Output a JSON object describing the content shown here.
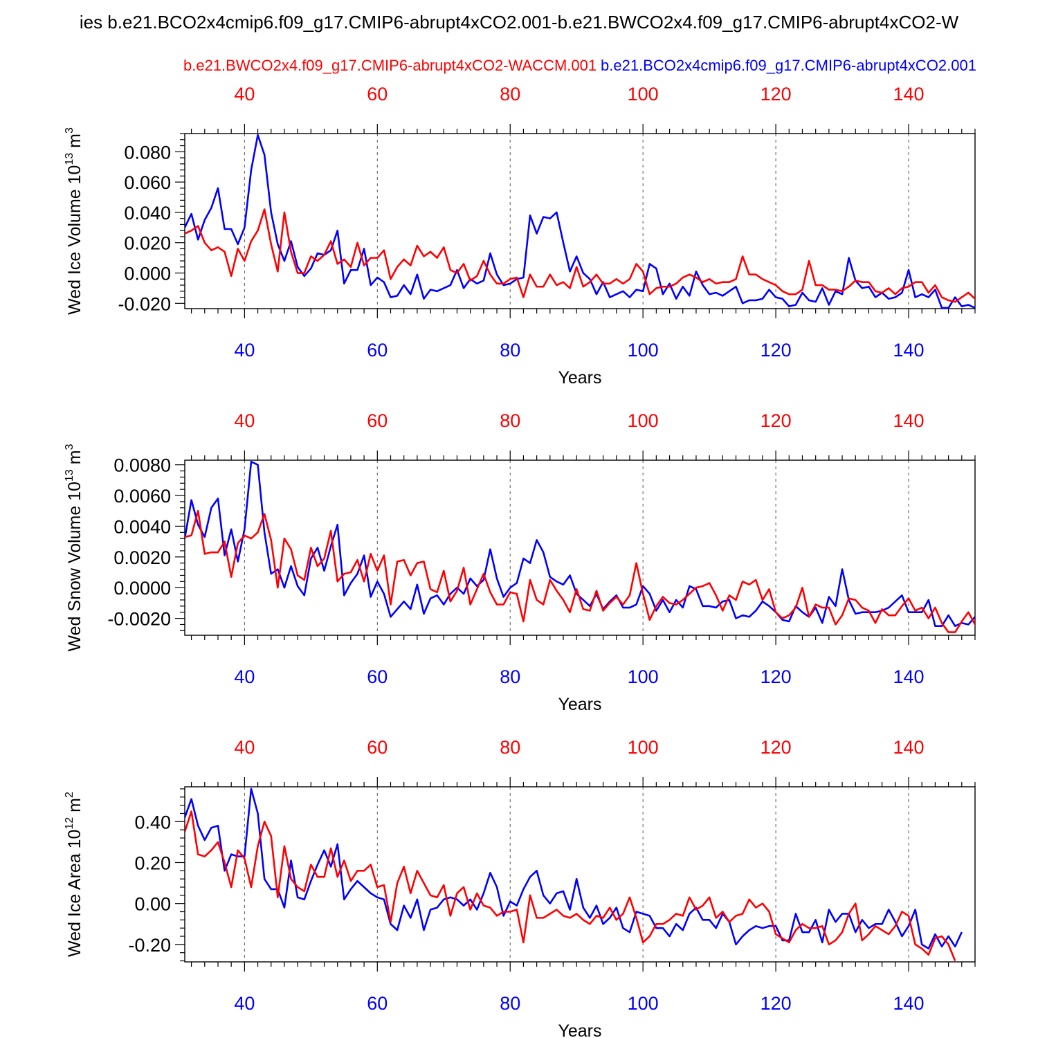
{
  "figure": {
    "main_title": "ies b.e21.BCO2x4cmip6.f09_g17.CMIP6-abrupt4xCO2.001-b.e21.BWCO2x4.f09_g17.CMIP6-abrupt4xCO2-W",
    "red_label": "b.e21.BWCO2x4.f09_g17.CMIP6-abrupt4xCO2-WACCM.001",
    "blue_label": "b.e21.BCO2x4cmip6.f09_g17.CMIP6-abrupt4xCO2.001",
    "colors": {
      "red": "#ff0000",
      "blue": "#0000ff",
      "frame": "#000000",
      "grid": "#555555"
    }
  },
  "chart_data": [
    {
      "type": "line",
      "ylabel": "Wed Ice Volume 10",
      "ylabel_exp": "13",
      "ylabel_unit": " m",
      "ylabel_unit_exp": "3",
      "xlabel": "Years",
      "xlim": [
        31,
        150
      ],
      "ylim": [
        -0.0235,
        0.092
      ],
      "yticks": [
        -0.02,
        0.0,
        0.02,
        0.04,
        0.06,
        0.08
      ],
      "ytick_labels": [
        "-0.020",
        "0.000",
        "0.020",
        "0.040",
        "0.060",
        "0.080"
      ],
      "xticks": [
        40,
        60,
        80,
        100,
        120,
        140
      ],
      "xtick_labels": [
        "40",
        "60",
        "80",
        "100",
        "120",
        "140"
      ],
      "x_start": 31,
      "series": [
        {
          "name": "b.e21.BCO2x4cmip6.f09_g17.CMIP6-abrupt4xCO2.001",
          "color": "blue",
          "values": [
            0.03,
            0.039,
            0.022,
            0.035,
            0.043,
            0.056,
            0.029,
            0.029,
            0.019,
            0.03,
            0.068,
            0.091,
            0.078,
            0.04,
            0.019,
            0.008,
            0.021,
            0.004,
            -0.002,
            0.003,
            0.013,
            0.012,
            0.015,
            0.028,
            -0.007,
            0.002,
            0.002,
            0.016,
            -0.008,
            -0.003,
            -0.006,
            -0.016,
            -0.015,
            -0.008,
            -0.014,
            -0.001,
            -0.017,
            -0.011,
            -0.012,
            -0.01,
            -0.008,
            0.002,
            -0.01,
            -0.004,
            -0.007,
            -0.005,
            0.013,
            -0.001,
            -0.008,
            -0.007,
            -0.004,
            -0.003,
            0.038,
            0.026,
            0.037,
            0.036,
            0.04,
            0.02,
            0.001,
            0.011,
            0.0,
            -0.004,
            -0.014,
            -0.006,
            -0.016,
            -0.014,
            -0.012,
            -0.016,
            -0.011,
            -0.012,
            0.006,
            0.003,
            -0.014,
            -0.007,
            -0.017,
            -0.009,
            -0.015,
            0.001,
            -0.008,
            -0.014,
            -0.013,
            -0.015,
            -0.012,
            -0.009,
            -0.02,
            -0.018,
            -0.018,
            -0.017,
            -0.011,
            -0.016,
            -0.017,
            -0.022,
            -0.021,
            -0.013,
            -0.018,
            -0.019,
            -0.01,
            -0.021,
            -0.012,
            -0.014,
            0.01,
            -0.005,
            -0.01,
            -0.009,
            -0.016,
            -0.013,
            -0.017,
            -0.016,
            -0.013,
            0.002,
            -0.016,
            -0.014,
            -0.016,
            -0.011,
            -0.023,
            -0.023,
            -0.016,
            -0.022,
            -0.021,
            -0.023
          ]
        },
        {
          "name": "b.e21.BWCO2x4.f09_g17.CMIP6-abrupt4xCO2-WACCM.001",
          "color": "red",
          "values": [
            0.026,
            0.028,
            0.031,
            0.02,
            0.015,
            0.017,
            0.014,
            -0.002,
            0.016,
            0.008,
            0.021,
            0.028,
            0.042,
            0.019,
            0.001,
            0.04,
            0.014,
            0.0,
            0.0,
            0.011,
            0.008,
            0.012,
            0.021,
            0.006,
            0.009,
            0.004,
            0.02,
            0.005,
            0.01,
            0.01,
            0.015,
            -0.004,
            0.004,
            0.009,
            0.005,
            0.018,
            0.011,
            0.014,
            0.01,
            0.017,
            0.002,
            0.0,
            0.006,
            -0.005,
            -0.002,
            0.008,
            -0.001,
            -0.007,
            -0.007,
            -0.004,
            -0.003,
            -0.016,
            -0.001,
            -0.009,
            -0.009,
            -0.001,
            -0.008,
            -0.006,
            -0.01,
            0.004,
            -0.009,
            -0.006,
            -0.001,
            -0.007,
            -0.007,
            -0.004,
            -0.007,
            -0.004,
            0.006,
            0.001,
            -0.014,
            -0.01,
            -0.009,
            -0.009,
            -0.007,
            -0.003,
            -0.001,
            -0.003,
            -0.006,
            -0.004,
            -0.007,
            -0.006,
            -0.006,
            -0.004,
            0.011,
            -0.001,
            -0.001,
            -0.004,
            -0.006,
            -0.008,
            -0.012,
            -0.014,
            -0.014,
            -0.011,
            0.008,
            -0.008,
            -0.008,
            -0.011,
            -0.011,
            -0.012,
            -0.009,
            -0.005,
            -0.006,
            -0.006,
            -0.012,
            -0.013,
            -0.01,
            -0.014,
            -0.01,
            -0.009,
            -0.006,
            -0.006,
            -0.013,
            -0.008,
            -0.016,
            -0.018,
            -0.019,
            -0.016,
            -0.013,
            -0.017,
            -0.019
          ]
        }
      ]
    },
    {
      "type": "line",
      "ylabel": "Wed Snow Volume 10",
      "ylabel_exp": "13",
      "ylabel_unit": " m",
      "ylabel_unit_exp": "3",
      "xlabel": "Years",
      "xlim": [
        31,
        150
      ],
      "ylim": [
        -0.0031,
        0.0083
      ],
      "yticks": [
        -0.002,
        0.0,
        0.002,
        0.004,
        0.006,
        0.008
      ],
      "ytick_labels": [
        "-0.0020",
        "0.0000",
        "0.0020",
        "0.0040",
        "0.0060",
        "0.0080"
      ],
      "xticks": [
        40,
        60,
        80,
        100,
        120,
        140
      ],
      "xtick_labels": [
        "40",
        "60",
        "80",
        "100",
        "120",
        "140"
      ],
      "x_start": 31,
      "series": [
        {
          "name": "b.e21.BCO2x4cmip6.f09_g17.CMIP6-abrupt4xCO2.001",
          "color": "blue",
          "values": [
            0.0032,
            0.0057,
            0.0041,
            0.0033,
            0.0052,
            0.0058,
            0.0021,
            0.0038,
            0.0017,
            0.0038,
            0.0082,
            0.008,
            0.0036,
            0.0009,
            0.0012,
            0.0,
            0.0014,
            0.0001,
            -0.0005,
            0.0019,
            0.0026,
            0.0011,
            0.0027,
            0.0041,
            -0.0005,
            0.0003,
            0.0009,
            0.0021,
            -0.0006,
            0.0004,
            -0.0004,
            -0.0019,
            -0.0014,
            -0.0009,
            -0.0014,
            0.0002,
            -0.0017,
            -0.0007,
            -0.0005,
            -0.0011,
            -0.0004,
            0.0,
            -0.0004,
            0.0006,
            0.0001,
            0.0005,
            0.0025,
            0.0006,
            -0.0006,
            0.0,
            0.0003,
            0.0019,
            0.0016,
            0.0031,
            0.0023,
            0.0007,
            0.0004,
            0.0002,
            0.0008,
            -0.0004,
            -0.0008,
            -0.0012,
            -0.0004,
            -0.0014,
            -0.0009,
            -0.0005,
            -0.0013,
            -0.0013,
            -0.0011,
            0.0001,
            -0.0004,
            -0.0015,
            -0.0008,
            -0.0016,
            -0.0008,
            -0.0013,
            0.0001,
            -0.0001,
            -0.0012,
            -0.0012,
            -0.0013,
            -0.0009,
            -0.0008,
            -0.002,
            -0.0018,
            -0.0019,
            -0.0015,
            -0.0009,
            -0.0012,
            -0.0016,
            -0.0021,
            -0.0022,
            -0.0012,
            -0.0016,
            -0.0019,
            -0.0013,
            -0.0023,
            -0.0006,
            -0.0012,
            0.0012,
            -0.0008,
            -0.0017,
            -0.0016,
            -0.0016,
            -0.0016,
            -0.0015,
            -0.0013,
            -0.0009,
            -0.0005,
            -0.0016,
            -0.0016,
            -0.0016,
            -0.0008,
            -0.0025,
            -0.0025,
            -0.0018,
            -0.0025,
            -0.0023,
            -0.0024,
            -0.0019
          ]
        },
        {
          "name": "b.e21.BWCO2x4.f09_g17.CMIP6-abrupt4xCO2-WACCM.001",
          "color": "red",
          "values": [
            0.0033,
            0.0034,
            0.005,
            0.0022,
            0.0023,
            0.0023,
            0.003,
            0.0007,
            0.0029,
            0.0034,
            0.0032,
            0.0036,
            0.0048,
            0.0031,
            0.0,
            0.0032,
            0.0025,
            0.0008,
            0.0005,
            0.0026,
            0.0014,
            0.0019,
            0.0037,
            0.0004,
            0.0009,
            0.001,
            0.0018,
            0.0004,
            0.0022,
            0.0011,
            0.0021,
            -0.0011,
            0.0017,
            0.0018,
            0.0008,
            0.0016,
            0.0017,
            -0.0001,
            -0.0003,
            0.0011,
            -0.0009,
            -0.0002,
            0.0013,
            -0.0011,
            -0.0001,
            0.0009,
            -0.0003,
            -0.0011,
            -0.0011,
            -0.0003,
            -0.0004,
            -0.0022,
            0.0005,
            -0.0008,
            -0.0011,
            0.0005,
            -0.0002,
            -0.0008,
            -0.0016,
            -0.0001,
            -0.0014,
            -0.0015,
            -0.0002,
            -0.0015,
            -0.001,
            -0.0006,
            -0.0011,
            -0.0005,
            0.0016,
            -0.0004,
            -0.0021,
            -0.0012,
            -0.0006,
            -0.001,
            -0.0011,
            -0.0008,
            -0.0004,
            0.0,
            0.0001,
            0.0003,
            -0.0005,
            -0.0015,
            -0.0005,
            -0.0008,
            0.0004,
            0.0002,
            0.0005,
            -0.0008,
            -0.0001,
            -0.0016,
            -0.002,
            -0.0018,
            -0.0013,
            0.0,
            -0.0019,
            -0.0011,
            -0.0013,
            -0.0013,
            -0.0024,
            -0.0018,
            -0.0007,
            -0.0008,
            -0.0013,
            -0.0015,
            -0.0023,
            -0.0014,
            -0.0018,
            -0.0018,
            -0.0012,
            -0.0007,
            -0.0015,
            -0.0013,
            -0.002,
            -0.0013,
            -0.0023,
            -0.0029,
            -0.0029,
            -0.0022,
            -0.0016,
            -0.0024,
            -0.0031
          ]
        }
      ]
    },
    {
      "type": "line",
      "ylabel": "Wed Ice Area 10",
      "ylabel_exp": "12",
      "ylabel_unit": " m",
      "ylabel_unit_exp": "2",
      "xlabel": "Years",
      "xlim": [
        31,
        150
      ],
      "ylim": [
        -0.285,
        0.57
      ],
      "yticks": [
        -0.2,
        0.0,
        0.2,
        0.4
      ],
      "ytick_labels": [
        "-0.20",
        "0.00",
        "0.20",
        "0.40"
      ],
      "xticks": [
        40,
        60,
        80,
        100,
        120,
        140
      ],
      "xtick_labels": [
        "40",
        "60",
        "80",
        "100",
        "120",
        "140"
      ],
      "x_start": 31,
      "series": [
        {
          "name": "b.e21.BCO2x4cmip6.f09_g17.CMIP6-abrupt4xCO2.001",
          "color": "blue",
          "values": [
            0.42,
            0.51,
            0.38,
            0.31,
            0.37,
            0.38,
            0.16,
            0.24,
            0.23,
            0.23,
            0.56,
            0.44,
            0.12,
            0.07,
            0.07,
            -0.02,
            0.21,
            0.03,
            0.02,
            0.11,
            0.19,
            0.26,
            0.18,
            0.29,
            0.02,
            0.07,
            0.11,
            0.08,
            0.05,
            0.03,
            0.02,
            -0.1,
            -0.13,
            -0.01,
            -0.07,
            0.02,
            -0.13,
            -0.03,
            -0.02,
            0.02,
            0.03,
            0.02,
            -0.01,
            0.02,
            -0.03,
            0.05,
            0.15,
            0.08,
            -0.06,
            0.01,
            -0.01,
            0.07,
            0.13,
            0.16,
            0.04,
            0.0,
            0.05,
            0.06,
            -0.03,
            0.12,
            -0.02,
            -0.07,
            -0.01,
            -0.1,
            -0.07,
            -0.02,
            -0.12,
            -0.14,
            -0.04,
            -0.05,
            -0.06,
            -0.12,
            -0.12,
            -0.16,
            -0.1,
            -0.13,
            -0.05,
            -0.02,
            -0.08,
            -0.08,
            -0.12,
            -0.05,
            -0.09,
            -0.2,
            -0.16,
            -0.13,
            -0.11,
            -0.12,
            -0.11,
            -0.11,
            -0.18,
            -0.18,
            -0.05,
            -0.14,
            -0.14,
            -0.08,
            -0.19,
            -0.03,
            -0.09,
            -0.05,
            -0.05,
            -0.14,
            -0.08,
            -0.12,
            -0.1,
            -0.1,
            -0.03,
            -0.09,
            -0.16,
            -0.11,
            -0.03,
            -0.2,
            -0.22,
            -0.15,
            -0.21,
            -0.16,
            -0.21,
            -0.14
          ]
        },
        {
          "name": "b.e21.BWCO2x4.f09_g17.CMIP6-abrupt4xCO2-WACCM.001",
          "color": "red",
          "values": [
            0.35,
            0.45,
            0.24,
            0.23,
            0.26,
            0.3,
            0.2,
            0.08,
            0.26,
            0.22,
            0.08,
            0.28,
            0.4,
            0.33,
            0.03,
            0.28,
            0.12,
            0.08,
            0.06,
            0.19,
            0.13,
            0.13,
            0.27,
            0.13,
            0.21,
            0.11,
            0.16,
            0.16,
            0.19,
            0.08,
            0.09,
            -0.09,
            0.1,
            0.18,
            0.05,
            0.16,
            0.1,
            0.04,
            0.03,
            0.09,
            -0.06,
            0.05,
            0.08,
            -0.03,
            0.05,
            -0.01,
            -0.02,
            -0.06,
            -0.04,
            -0.04,
            -0.03,
            -0.19,
            0.04,
            -0.07,
            -0.07,
            -0.05,
            -0.03,
            -0.06,
            -0.07,
            -0.05,
            -0.08,
            -0.1,
            -0.06,
            -0.07,
            -0.02,
            -0.08,
            -0.05,
            0.03,
            -0.07,
            -0.19,
            -0.16,
            -0.1,
            -0.1,
            -0.08,
            -0.05,
            -0.06,
            0.03,
            -0.03,
            -0.01,
            0.03,
            -0.07,
            -0.04,
            -0.09,
            -0.06,
            -0.05,
            0.02,
            -0.02,
            0.0,
            -0.04,
            -0.15,
            -0.17,
            -0.19,
            -0.13,
            -0.1,
            -0.12,
            -0.12,
            -0.11,
            -0.2,
            -0.18,
            -0.14,
            -0.05,
            0.0,
            -0.18,
            -0.15,
            -0.11,
            -0.13,
            -0.15,
            -0.11,
            -0.04,
            -0.06,
            -0.2,
            -0.22,
            -0.25,
            -0.17,
            -0.16,
            -0.2,
            -0.28
          ]
        }
      ]
    }
  ]
}
